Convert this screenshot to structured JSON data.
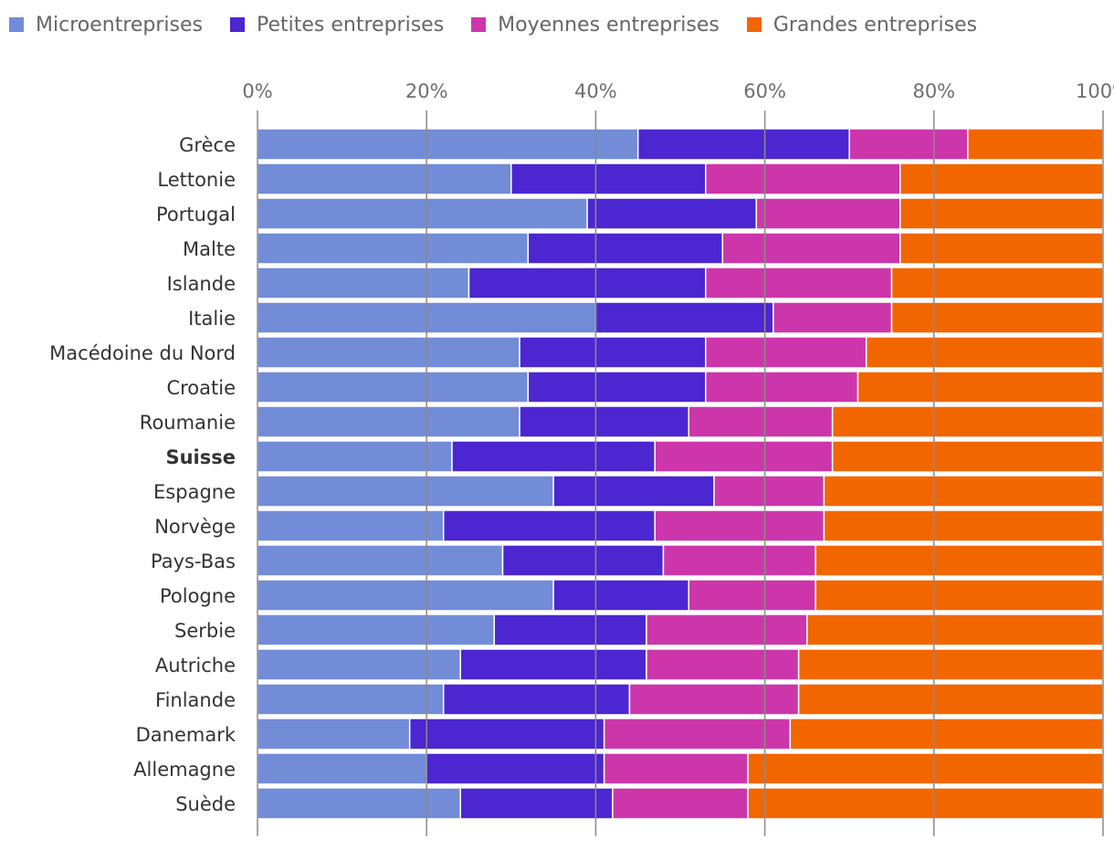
{
  "chart_data": {
    "type": "bar",
    "orientation": "horizontal",
    "stacked": true,
    "normalized": true,
    "x_ticks": [
      "0%",
      "20%",
      "40%",
      "60%",
      "80%",
      "100%"
    ],
    "xlim": [
      0,
      100
    ],
    "categories": [
      "Grèce",
      "Lettonie",
      "Portugal",
      "Malte",
      "Islande",
      "Italie",
      "Macédoine du Nord",
      "Croatie",
      "Roumanie",
      "Suisse",
      "Espagne",
      "Norvège",
      "Pays-Bas",
      "Pologne",
      "Serbie",
      "Autriche",
      "Finlande",
      "Danemark",
      "Allemagne",
      "Suède"
    ],
    "highlighted_category": "Suisse",
    "legend_position": "top-left",
    "series": [
      {
        "name": "Microentreprises",
        "color": "#728cd8",
        "values": [
          45,
          30,
          39,
          32,
          25,
          40,
          31,
          32,
          31,
          23,
          35,
          22,
          29,
          35,
          28,
          24,
          22,
          18,
          20,
          24
        ]
      },
      {
        "name": "Petites entreprises",
        "color": "#4c26d0",
        "values": [
          25,
          23,
          20,
          23,
          28,
          21,
          22,
          21,
          20,
          24,
          19,
          25,
          19,
          16,
          18,
          22,
          22,
          23,
          21,
          18
        ]
      },
      {
        "name": "Moyennes entreprises",
        "color": "#cc36aa",
        "values": [
          14,
          23,
          17,
          21,
          22,
          14,
          19,
          18,
          17,
          21,
          13,
          20,
          18,
          15,
          19,
          18,
          20,
          22,
          17,
          16
        ]
      },
      {
        "name": "Grandes entreprises",
        "color": "#f26600",
        "values": [
          16,
          24,
          24,
          24,
          25,
          25,
          28,
          29,
          32,
          32,
          33,
          33,
          34,
          34,
          35,
          36,
          36,
          37,
          42,
          42
        ]
      }
    ]
  }
}
